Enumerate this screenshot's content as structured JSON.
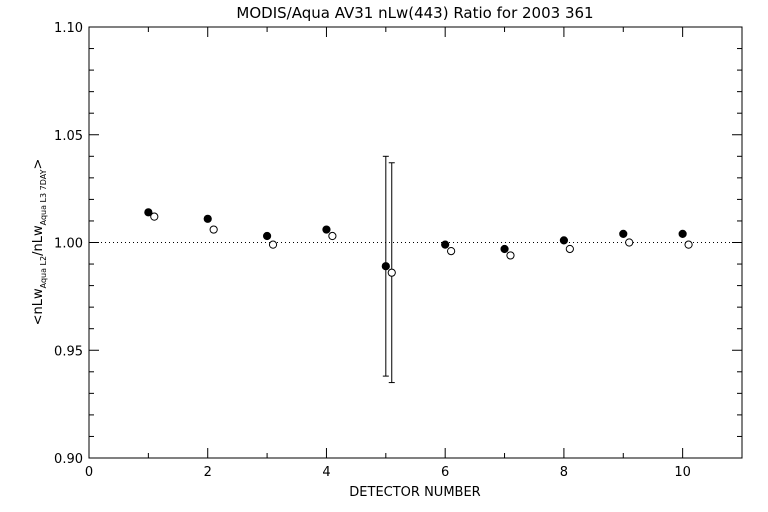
{
  "chart_data": {
    "type": "scatter",
    "title": "MODIS/Aqua AV31 nLw(443) Ratio for 2003 361",
    "xlabel": "DETECTOR NUMBER",
    "ylabel": {
      "open": "<nLw",
      "sub1": "Aqua L2",
      "mid": "/nLw",
      "sub2": "Aqua L3 7DAY",
      "close": ">"
    },
    "xlim": [
      0,
      11
    ],
    "ylim": [
      0.9,
      1.1
    ],
    "x_ticks": [
      "0",
      "2",
      "4",
      "6",
      "8",
      "10"
    ],
    "y_ticks": [
      "0.90",
      "0.95",
      "1.00",
      "1.05",
      "1.10"
    ],
    "reference_line": 1.0,
    "series": [
      {
        "marker": "filled-circle",
        "x": [
          1,
          2,
          3,
          4,
          5,
          6,
          7,
          8,
          9,
          10
        ],
        "y": [
          1.014,
          1.011,
          1.003,
          1.006,
          0.989,
          0.999,
          0.997,
          1.001,
          1.004,
          1.004
        ],
        "err_low": [
          null,
          null,
          null,
          null,
          0.938,
          null,
          null,
          null,
          null,
          null
        ],
        "err_high": [
          null,
          null,
          null,
          null,
          1.04,
          null,
          null,
          null,
          null,
          null
        ]
      },
      {
        "marker": "open-circle",
        "x": [
          1.1,
          2.1,
          3.1,
          4.1,
          5.1,
          6.1,
          7.1,
          8.1,
          9.1,
          10.1
        ],
        "y": [
          1.012,
          1.006,
          0.999,
          1.003,
          0.986,
          0.996,
          0.994,
          0.997,
          1.0,
          0.999
        ],
        "err_low": [
          null,
          null,
          null,
          null,
          0.935,
          null,
          null,
          null,
          null,
          null
        ],
        "err_high": [
          null,
          null,
          null,
          null,
          1.037,
          null,
          null,
          null,
          null,
          null
        ]
      }
    ]
  }
}
